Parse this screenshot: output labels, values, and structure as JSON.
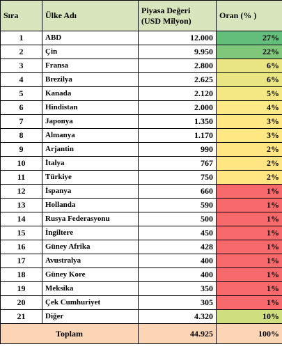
{
  "headers": {
    "sira": "Sıra",
    "ulke": "Ülke Adı",
    "deger_line1": "Piyasa Değeri",
    "deger_line2": "(USD Milyon)",
    "oran": "Oran (% )"
  },
  "rows": [
    {
      "sira": "1",
      "ulke": "ABD",
      "deger": "12.000",
      "oran": "27%",
      "color": "#63be7b"
    },
    {
      "sira": "2",
      "ulke": "Çin",
      "deger": "9.950",
      "oran": "22%",
      "color": "#80c77c"
    },
    {
      "sira": "3",
      "ulke": "Fransa",
      "deger": "2.800",
      "oran": "6%",
      "color": "#e9e583"
    },
    {
      "sira": "4",
      "ulke": "Brezilya",
      "deger": "2.625",
      "oran": "6%",
      "color": "#e9e583"
    },
    {
      "sira": "5",
      "ulke": "Kanada",
      "deger": "2.120",
      "oran": "5%",
      "color": "#f3e884"
    },
    {
      "sira": "6",
      "ulke": "Hindistan",
      "deger": "2.000",
      "oran": "4%",
      "color": "#fde985"
    },
    {
      "sira": "7",
      "ulke": "Japonya",
      "deger": "1.350",
      "oran": "3%",
      "color": "#ffe884"
    },
    {
      "sira": "8",
      "ulke": "Almanya",
      "deger": "1.170",
      "oran": "3%",
      "color": "#ffe884"
    },
    {
      "sira": "9",
      "ulke": "Arjantin",
      "deger": "990",
      "oran": "2%",
      "color": "#ffe683"
    },
    {
      "sira": "10",
      "ulke": "İtalya",
      "deger": "767",
      "oran": "2%",
      "color": "#ffe683"
    },
    {
      "sira": "11",
      "ulke": "Türkiye",
      "deger": "750",
      "oran": "2%",
      "color": "#ffe683"
    },
    {
      "sira": "12",
      "ulke": "İspanya",
      "deger": "660",
      "oran": "1%",
      "color": "#f8696b"
    },
    {
      "sira": "13",
      "ulke": "Hollanda",
      "deger": "590",
      "oran": "1%",
      "color": "#f8696b"
    },
    {
      "sira": "14",
      "ulke": "Rusya Federasyonu",
      "deger": "500",
      "oran": "1%",
      "color": "#f8696b"
    },
    {
      "sira": "15",
      "ulke": "İngiltere",
      "deger": "450",
      "oran": "1%",
      "color": "#f8696b"
    },
    {
      "sira": "16",
      "ulke": "Güney Afrika",
      "deger": "428",
      "oran": "1%",
      "color": "#f8696b"
    },
    {
      "sira": "17",
      "ulke": "Avustralya",
      "deger": "400",
      "oran": "1%",
      "color": "#f8696b"
    },
    {
      "sira": "18",
      "ulke": "Güney Kore",
      "deger": "400",
      "oran": "1%",
      "color": "#f8696b"
    },
    {
      "sira": "19",
      "ulke": "Meksika",
      "deger": "350",
      "oran": "1%",
      "color": "#f8696b"
    },
    {
      "sira": "20",
      "ulke": "Çek Cumhuriyet",
      "deger": "305",
      "oran": "1%",
      "color": "#f8696b"
    },
    {
      "sira": "21",
      "ulke": "Diğer",
      "deger": "4.320",
      "oran": "10%",
      "color": "#cfdf80"
    }
  ],
  "footer": {
    "label": "Toplam",
    "deger": "44.925",
    "oran": "100%"
  }
}
